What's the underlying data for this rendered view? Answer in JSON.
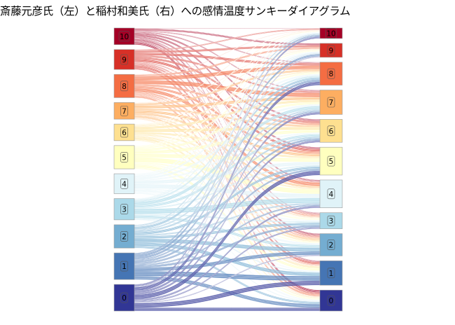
{
  "title": "斎藤元彦氏（左）と稲村和美氏（右）への感情温度サンキーダイアグラム",
  "chart_data": {
    "type": "sankey",
    "title": "斎藤元彦氏（左）と稲村和美氏（右）への感情温度サンキーダイアグラム",
    "left_axis": "斎藤元彦氏",
    "right_axis": "稲村和美氏",
    "categories": [
      "10",
      "9",
      "8",
      "7",
      "6",
      "5",
      "4",
      "3",
      "2",
      "1",
      "0"
    ],
    "left_nodes": [
      {
        "label": "10",
        "value": 2.5
      },
      {
        "label": "9",
        "value": 3.0
      },
      {
        "label": "8",
        "value": 3.5
      },
      {
        "label": "7",
        "value": 2.5
      },
      {
        "label": "6",
        "value": 2.5
      },
      {
        "label": "5",
        "value": 3.5
      },
      {
        "label": "4",
        "value": 3.0
      },
      {
        "label": "3",
        "value": 3.2
      },
      {
        "label": "2",
        "value": 3.5
      },
      {
        "label": "1",
        "value": 4.0
      },
      {
        "label": "0",
        "value": 4.0
      }
    ],
    "right_nodes": [
      {
        "label": "10",
        "value": 1.5
      },
      {
        "label": "9",
        "value": 2.0
      },
      {
        "label": "8",
        "value": 3.3
      },
      {
        "label": "7",
        "value": 3.5
      },
      {
        "label": "6",
        "value": 3.3
      },
      {
        "label": "5",
        "value": 4.0
      },
      {
        "label": "4",
        "value": 4.0
      },
      {
        "label": "3",
        "value": 2.3
      },
      {
        "label": "2",
        "value": 3.2
      },
      {
        "label": "1",
        "value": 3.5
      },
      {
        "label": "0",
        "value": 3.0
      }
    ],
    "colors": {
      "10": "#a50026",
      "9": "#d73027",
      "8": "#f46d43",
      "7": "#fdae61",
      "6": "#fee090",
      "5": "#ffffbf",
      "4": "#e0f3f8",
      "3": "#abd9e9",
      "2": "#74add1",
      "1": "#4575b4",
      "0": "#313695"
    }
  }
}
